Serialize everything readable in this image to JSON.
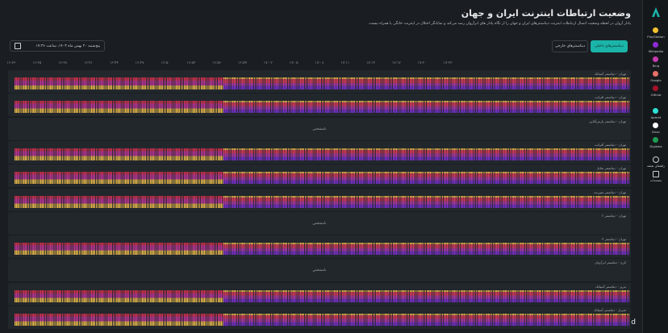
{
  "header": {
    "title": "وضعیت ارتباطات اینترنت ایران و جهان",
    "subtitle": "پادار آروان در لحظه وضعیت اتصال ارتباطات اینترنت دیتاسنترهای ایران و جهان را از نگاه پادار های ابرآروان رصد می‌کند و نمایانگر اختلال در اینترنت خانگی یا همراه نیست."
  },
  "controls": {
    "date": "پنج‌شنبه ۲۰ بهمن ماه ۱۴۰۳، ساعت ۱۷:۳۶",
    "tabs": [
      "دیتاسنترهای داخلی",
      "دیتاسنترهای خارجی"
    ]
  },
  "timeline": [
    "۱۶:۳۲",
    "۱۶:۳۵",
    "۱۶:۳۸",
    "۱۶:۴۱",
    "۱۶:۴۴",
    "۱۶:۴۷",
    "۱۶:۵۰",
    "۱۶:۵۳",
    "۱۶:۵۶",
    "۱۶:۵۹",
    "۱۷:۰۲",
    "۱۷:۰۵",
    "۱۷:۰۸",
    "۱۷:۱۱",
    "۱۷:۱۴",
    "۱۷:۱۷",
    "۱۷:۲۰",
    "۱۷:۲۳"
  ],
  "rows": [
    {
      "label": "تهران - دیتاسنتر آسیاتک"
    },
    {
      "label": "تهران - دیتاسنتر افرانت"
    },
    {
      "label": "تهران - دیتاسنتر پارس‌آنلاین",
      "status": "نامشخص"
    },
    {
      "label": "تهران - دیتاسنتر آفرانت"
    },
    {
      "label": "تهران - دیتاسنتر شاتل"
    },
    {
      "label": "تهران - دیتاسنتر مبین‌نت"
    },
    {
      "label": "تهران - دیتاسنتر ۲",
      "status": "نامشخص"
    },
    {
      "label": "تهران - دیتاسنتر ۳"
    },
    {
      "label": "کرج - دیتاسنتر ابرآروان",
      "status": "نامشخص"
    },
    {
      "label": "تبریز - دیتاسنتر آسیاتک"
    },
    {
      "label": "شیراز - دیتاسنتر آسیاتک"
    }
  ],
  "sidebar": {
    "services": [
      {
        "name": "PlayStation",
        "color": "#f2c230"
      },
      {
        "name": "Wikipedia",
        "color": "#8e2bd6"
      },
      {
        "name": "Bing",
        "color": "#c43bb0"
      },
      {
        "name": "Google",
        "color": "#e8706a"
      },
      {
        "name": "Github",
        "color": "#a5122a"
      },
      {
        "name": "Aparat",
        "color": "#2ee0d6"
      },
      {
        "name": "Divar",
        "color": "#ffffff"
      },
      {
        "name": "Digikala",
        "color": "#1f9c54"
      }
    ],
    "help": "راهنمای نقشه",
    "guide": "مستندات"
  },
  "footer": {
    "brand": "arvancloud"
  }
}
